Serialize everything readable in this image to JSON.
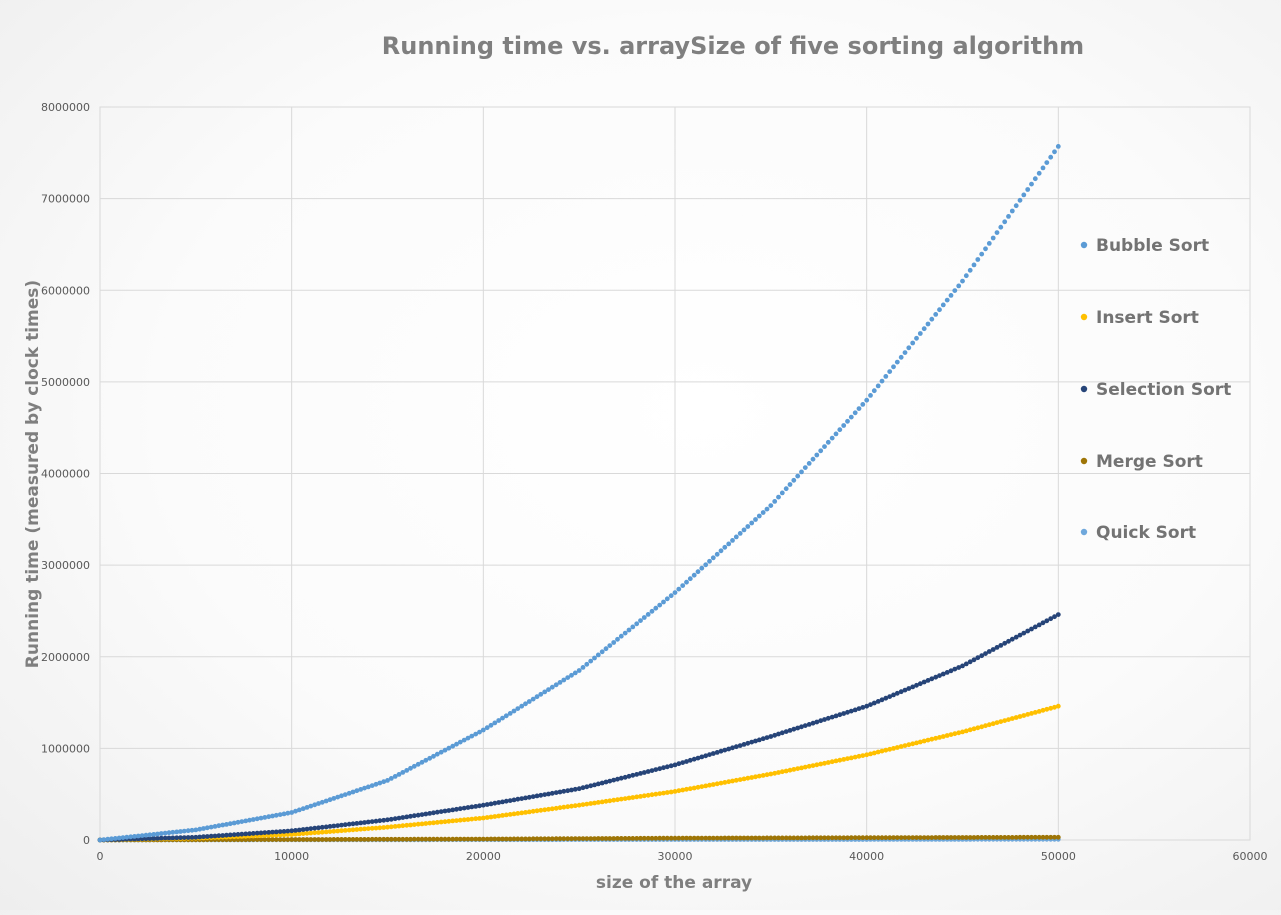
{
  "chart_data": {
    "type": "scatter",
    "title": "Running time vs. arraySize of five sorting algorithm",
    "xlabel": "size of the array",
    "ylabel": "Running time (measured by clock times)",
    "xlim": [
      0,
      60000
    ],
    "ylim": [
      0,
      8000000
    ],
    "x_ticks": [
      0,
      10000,
      20000,
      30000,
      40000,
      50000,
      60000
    ],
    "y_ticks": [
      0,
      1000000,
      2000000,
      3000000,
      4000000,
      5000000,
      6000000,
      7000000,
      8000000
    ],
    "grid": true,
    "legend_position": "right",
    "x_sampling": {
      "start": 0,
      "end": 50000,
      "step": 200
    },
    "series": [
      {
        "name": "Bubble Sort",
        "color": "#5b9bd5",
        "points": [
          [
            0,
            0
          ],
          [
            5000,
            110000
          ],
          [
            10000,
            300000
          ],
          [
            15000,
            650000
          ],
          [
            20000,
            1200000
          ],
          [
            25000,
            1850000
          ],
          [
            30000,
            2700000
          ],
          [
            35000,
            3650000
          ],
          [
            40000,
            4800000
          ],
          [
            45000,
            6100000
          ],
          [
            50000,
            7570000
          ]
        ]
      },
      {
        "name": "Insert Sort",
        "color": "#ffc000",
        "points": [
          [
            0,
            0
          ],
          [
            5000,
            20000
          ],
          [
            10000,
            60000
          ],
          [
            15000,
            140000
          ],
          [
            20000,
            240000
          ],
          [
            25000,
            380000
          ],
          [
            30000,
            530000
          ],
          [
            35000,
            720000
          ],
          [
            40000,
            930000
          ],
          [
            45000,
            1180000
          ],
          [
            50000,
            1460000
          ]
        ]
      },
      {
        "name": "Selection Sort",
        "color": "#264478",
        "points": [
          [
            0,
            0
          ],
          [
            5000,
            30000
          ],
          [
            10000,
            100000
          ],
          [
            15000,
            220000
          ],
          [
            20000,
            380000
          ],
          [
            25000,
            560000
          ],
          [
            30000,
            820000
          ],
          [
            35000,
            1130000
          ],
          [
            40000,
            1460000
          ],
          [
            45000,
            1900000
          ],
          [
            50000,
            2460000
          ]
        ]
      },
      {
        "name": "Merge Sort",
        "color": "#9e7506",
        "points": [
          [
            0,
            0
          ],
          [
            10000,
            5000
          ],
          [
            20000,
            10000
          ],
          [
            30000,
            20000
          ],
          [
            40000,
            25000
          ],
          [
            50000,
            30000
          ]
        ]
      },
      {
        "name": "Quick Sort",
        "color": "#6fa8dc",
        "points": [
          [
            0,
            0
          ],
          [
            10000,
            2000
          ],
          [
            20000,
            3000
          ],
          [
            30000,
            5000
          ],
          [
            40000,
            6000
          ],
          [
            50000,
            8000
          ]
        ]
      }
    ]
  }
}
